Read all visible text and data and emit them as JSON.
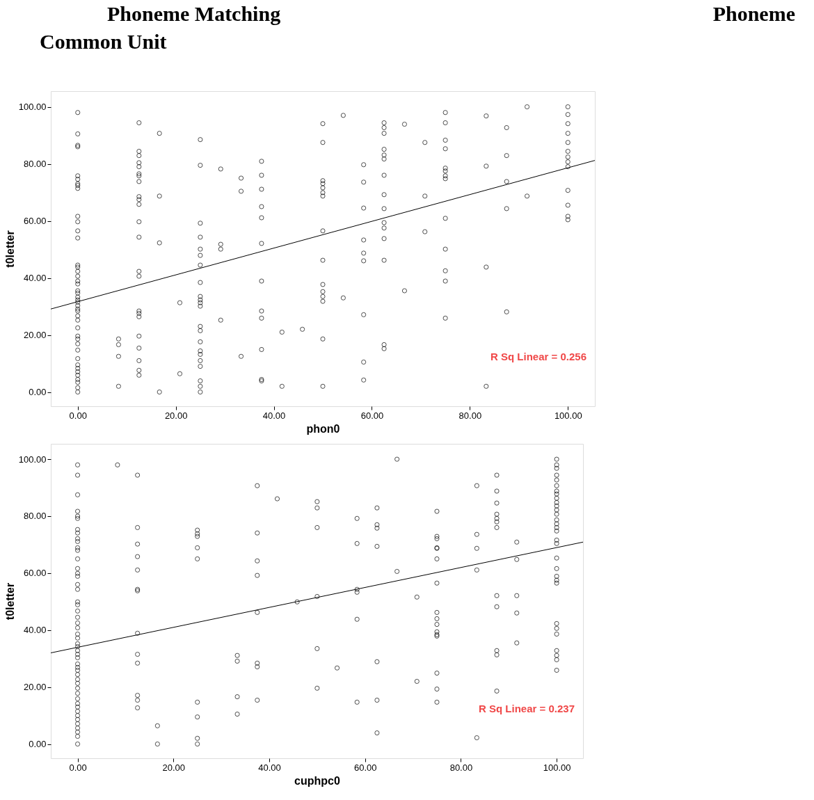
{
  "chart_data": [
    {
      "type": "scatter",
      "title": "Phoneme Matching",
      "subtitle": "Common Unit",
      "xlabel": "phon0",
      "ylabel": "t0letter",
      "xlim": [
        -5.5,
        105.5
      ],
      "ylim": [
        -5,
        105.5
      ],
      "xticks": [
        {
          "value": 0,
          "label": "0.00"
        },
        {
          "value": 20,
          "label": "20.00"
        },
        {
          "value": 40,
          "label": "40.00"
        },
        {
          "value": 60,
          "label": "60.00"
        },
        {
          "value": 80,
          "label": "80.00"
        },
        {
          "value": 100,
          "label": "100.00"
        }
      ],
      "yticks": [
        {
          "value": 0,
          "label": "0.00"
        },
        {
          "value": 20,
          "label": "20.00"
        },
        {
          "value": 40,
          "label": "40.00"
        },
        {
          "value": 60,
          "label": "60.00"
        },
        {
          "value": 80,
          "label": "80.00"
        },
        {
          "value": 100,
          "label": "100.00"
        }
      ],
      "grid": false,
      "annotations": [
        "R Sq Linear = 0.256",
        "Phoneme"
      ],
      "series": [
        {
          "marker": "circle",
          "color": "#000000",
          "x": [
            0,
            0,
            0,
            0,
            0,
            0,
            0,
            0,
            0,
            0,
            0,
            0,
            0,
            0,
            0,
            0,
            0,
            0,
            0,
            0,
            0,
            0,
            0,
            0,
            0,
            0,
            0,
            0,
            0,
            0,
            0,
            0,
            0,
            0,
            0,
            0,
            0,
            0,
            0,
            0,
            0,
            0,
            0,
            8.33,
            8.33,
            8.33,
            8.33,
            12.5,
            12.5,
            12.5,
            12.5,
            12.5,
            12.5,
            12.5,
            12.5,
            12.5,
            12.5,
            12.5,
            12.5,
            12.5,
            12.5,
            12.5,
            12.5,
            12.5,
            12.5,
            12.5,
            12.5,
            12.5,
            12.5,
            12.5,
            16.67,
            16.67,
            16.67,
            16.67,
            20.83,
            20.83,
            25,
            25,
            25,
            25,
            25,
            25,
            25,
            25,
            25,
            25,
            25,
            25,
            25,
            25,
            25,
            25,
            25,
            25,
            25,
            25,
            25,
            25,
            29.17,
            29.17,
            29.17,
            29.17,
            33.33,
            33.33,
            33.33,
            37.5,
            37.5,
            37.5,
            37.5,
            37.5,
            37.5,
            37.5,
            37.5,
            37.5,
            37.5,
            37.5,
            37.5,
            41.67,
            41.67,
            45.83,
            50,
            50,
            50,
            50,
            50,
            50,
            50,
            50,
            50,
            50,
            50,
            50,
            50,
            50,
            50,
            54.17,
            54.17,
            58.33,
            58.33,
            58.33,
            58.33,
            58.33,
            58.33,
            58.33,
            58.33,
            58.33,
            62.5,
            62.5,
            62.5,
            62.5,
            62.5,
            62.5,
            62.5,
            62.5,
            62.5,
            62.5,
            62.5,
            62.5,
            62.5,
            62.5,
            62.5,
            66.67,
            66.67,
            70.83,
            70.83,
            70.83,
            75,
            75,
            75,
            75,
            75,
            75,
            75,
            75,
            75,
            75,
            75,
            75,
            75,
            83.33,
            83.33,
            83.33,
            83.33,
            87.5,
            87.5,
            87.5,
            87.5,
            87.5,
            91.67,
            91.67,
            100,
            100,
            100,
            100,
            100,
            100,
            100,
            100,
            100,
            100,
            100,
            100,
            100
          ],
          "values": [
            98,
            90.5,
            86.5,
            86,
            75.8,
            74.6,
            73,
            72.4,
            71.4,
            61.6,
            59.7,
            56.5,
            54,
            44.5,
            43.8,
            42.3,
            40.6,
            38.9,
            37.9,
            35.5,
            34.7,
            33.3,
            32.3,
            31.5,
            30.3,
            29.1,
            28.4,
            26.7,
            25.2,
            22.5,
            19.6,
            18.6,
            16.9,
            14.7,
            11.7,
            9.5,
            8.3,
            7.1,
            5.9,
            4.4,
            3.4,
            1.5,
            0,
            18.6,
            16.6,
            12.5,
            2,
            94.4,
            84.4,
            82.9,
            80.4,
            79,
            76.5,
            75.8,
            73.8,
            68.5,
            67.5,
            65.8,
            59.7,
            54.3,
            42.3,
            40.6,
            28.4,
            27.6,
            26.4,
            19.6,
            15.4,
            11,
            7.6,
            5.9,
            90.7,
            68.7,
            52.3,
            0,
            31.3,
            6.4,
            88.5,
            79.5,
            59.2,
            54.3,
            50.1,
            47.9,
            44.5,
            38.4,
            33.5,
            32.3,
            31.3,
            30.1,
            23,
            21.5,
            17.6,
            14.4,
            13.2,
            11,
            9,
            3.9,
            2,
            0,
            78.2,
            51.8,
            50.1,
            25.2,
            75,
            70.4,
            12.5,
            80.9,
            76,
            71.1,
            65,
            61.1,
            52.1,
            38.9,
            28.4,
            25.9,
            14.9,
            4.4,
            3.9,
            21,
            2,
            22,
            94.1,
            87.5,
            74.1,
            73.1,
            71.6,
            69.9,
            68.7,
            56.5,
            46.2,
            37.7,
            35.2,
            33.5,
            31.8,
            18.6,
            2,
            97,
            33,
            79.7,
            73.6,
            64.5,
            53.3,
            48.7,
            46,
            27.1,
            10.5,
            4.2,
            94.4,
            92.7,
            90.7,
            85.1,
            83.1,
            81.7,
            76,
            69.2,
            64.3,
            59.4,
            57.5,
            53.8,
            46.2,
            16.6,
            15.2,
            93.9,
            35.5,
            87.5,
            68.7,
            56.2,
            98,
            94.4,
            88.3,
            85.3,
            78.5,
            77.5,
            75.8,
            74.8,
            60.9,
            50.1,
            42.5,
            38.9,
            25.9,
            96.8,
            79.2,
            43.8,
            2,
            92.7,
            82.9,
            73.8,
            64.3,
            28.1,
            100,
            68.7,
            100,
            97.3,
            94.1,
            90.7,
            87.5,
            84.4,
            82.4,
            80.7,
            79,
            70.7,
            65.5,
            61.6,
            60.4
          ]
        },
        {
          "type": "line",
          "color": "#000000",
          "x": [
            -5.5,
            105.5
          ],
          "values": [
            29.1,
            81.2
          ]
        }
      ]
    },
    {
      "type": "scatter",
      "xlabel": "cuphpc0",
      "ylabel": "t0letter",
      "xlim": [
        -5.6,
        105.5
      ],
      "ylim": [
        -5,
        105.4
      ],
      "xticks": [
        {
          "value": 0,
          "label": "0.00"
        },
        {
          "value": 20,
          "label": "20.00"
        },
        {
          "value": 40,
          "label": "40.00"
        },
        {
          "value": 60,
          "label": "60.00"
        },
        {
          "value": 80,
          "label": "80.00"
        },
        {
          "value": 100,
          "label": "100.00"
        }
      ],
      "yticks": [
        {
          "value": 0,
          "label": "0.00"
        },
        {
          "value": 20,
          "label": "20.00"
        },
        {
          "value": 40,
          "label": "40.00"
        },
        {
          "value": 60,
          "label": "60.00"
        },
        {
          "value": 80,
          "label": "80.00"
        },
        {
          "value": 100,
          "label": "100.00"
        }
      ],
      "grid": false,
      "annotations": [
        "R Sq Linear = 0.237"
      ],
      "series": [
        {
          "marker": "circle",
          "color": "#000000",
          "x": [
            0,
            0,
            0,
            0,
            0,
            0,
            0,
            0,
            0,
            0,
            0,
            0,
            0,
            0,
            0,
            0,
            0,
            0,
            0,
            0,
            0,
            0,
            0,
            0,
            0,
            0,
            0,
            0,
            0,
            0,
            0,
            0,
            0,
            0,
            0,
            0,
            0,
            0,
            0,
            0,
            0,
            0,
            0,
            0,
            0,
            0,
            0,
            0,
            0,
            0,
            8.33,
            12.5,
            12.5,
            12.5,
            12.5,
            12.5,
            12.5,
            12.5,
            12.5,
            12.5,
            12.5,
            12.5,
            12.5,
            12.5,
            16.67,
            16.67,
            25,
            25,
            25,
            25,
            25,
            25,
            25,
            25,
            25,
            33.33,
            33.33,
            33.33,
            33.33,
            37.5,
            37.5,
            37.5,
            37.5,
            37.5,
            37.5,
            37.5,
            37.5,
            41.67,
            45.83,
            50,
            50,
            50,
            50,
            50,
            50,
            54.17,
            58.33,
            58.33,
            58.33,
            58.33,
            58.33,
            58.33,
            62.5,
            62.5,
            62.5,
            62.5,
            62.5,
            62.5,
            62.5,
            66.67,
            66.67,
            70.83,
            70.83,
            75,
            75,
            75,
            75,
            75,
            75,
            75,
            75,
            75,
            75,
            75,
            75,
            75,
            75,
            75,
            75,
            83.33,
            83.33,
            83.33,
            83.33,
            83.33,
            87.5,
            87.5,
            87.5,
            87.5,
            87.5,
            87.5,
            87.5,
            87.5,
            87.5,
            87.5,
            87.5,
            87.5,
            91.67,
            91.67,
            91.67,
            91.67,
            91.67,
            100,
            100,
            100,
            100,
            100,
            100,
            100,
            100,
            100,
            100,
            100,
            100,
            100,
            100,
            100,
            100,
            100,
            100,
            100,
            100,
            100,
            100,
            100,
            100,
            100,
            100,
            100,
            100,
            100,
            100,
            100
          ],
          "values": [
            98,
            94.4,
            87.5,
            81.7,
            80,
            79.2,
            75.3,
            74.1,
            72.1,
            71.1,
            68.9,
            68,
            65,
            61.6,
            59.9,
            58.9,
            56,
            54.3,
            49.9,
            48.9,
            46.7,
            44.5,
            42.5,
            40.8,
            38.6,
            37.2,
            35.2,
            34.2,
            32.8,
            31.5,
            30.3,
            28.1,
            26.9,
            25.9,
            24.4,
            22.7,
            21.3,
            19.6,
            17.8,
            15.9,
            14.2,
            13,
            11.5,
            10,
            8.6,
            7.1,
            5.6,
            4.2,
            2.7,
            0,
            98,
            94.4,
            76,
            70.2,
            65.8,
            61.1,
            54.3,
            53.8,
            38.9,
            31.5,
            28.4,
            17.1,
            15.4,
            12.7,
            6.4,
            0,
            75.1,
            73.8,
            72.9,
            68.9,
            65,
            14.7,
            9.5,
            2,
            0,
            31.1,
            29.1,
            16.6,
            10.5,
            90.7,
            74.1,
            64.3,
            59.2,
            46.2,
            28.4,
            27.1,
            15.4,
            86.1,
            49.9,
            85.1,
            82.9,
            76,
            51.8,
            33.5,
            19.6,
            26.7,
            79.2,
            70.4,
            54.3,
            53.3,
            43.8,
            14.7,
            82.9,
            77,
            75.8,
            69.4,
            28.9,
            15.4,
            3.9,
            100,
            60.6,
            51.6,
            22,
            81.7,
            72.9,
            72.1,
            68.9,
            68.7,
            65,
            56.5,
            46.2,
            44,
            42,
            39.4,
            38.4,
            37.9,
            24.9,
            19.3,
            14.7,
            90.7,
            73.6,
            68.7,
            61.1,
            2.2,
            94.4,
            88.8,
            84.6,
            80.7,
            79.2,
            78,
            76,
            52.1,
            48.2,
            32.8,
            31.3,
            18.6,
            70.9,
            64.8,
            52.1,
            46,
            35.5,
            100,
            98,
            96.8,
            94.4,
            92.7,
            90.7,
            88.8,
            87.8,
            86.3,
            84.8,
            83.6,
            82.2,
            80.7,
            78.7,
            77.3,
            76,
            74.8,
            71.6,
            70.4,
            65.3,
            61.6,
            58.9,
            57.5,
            56.5,
            42.3,
            40.6,
            38.6,
            32.8,
            31.1,
            29.6,
            25.9
          ]
        },
        {
          "type": "line",
          "color": "#000000",
          "x": [
            -5.6,
            105.5
          ],
          "values": [
            32.0,
            70.9
          ]
        }
      ]
    }
  ]
}
